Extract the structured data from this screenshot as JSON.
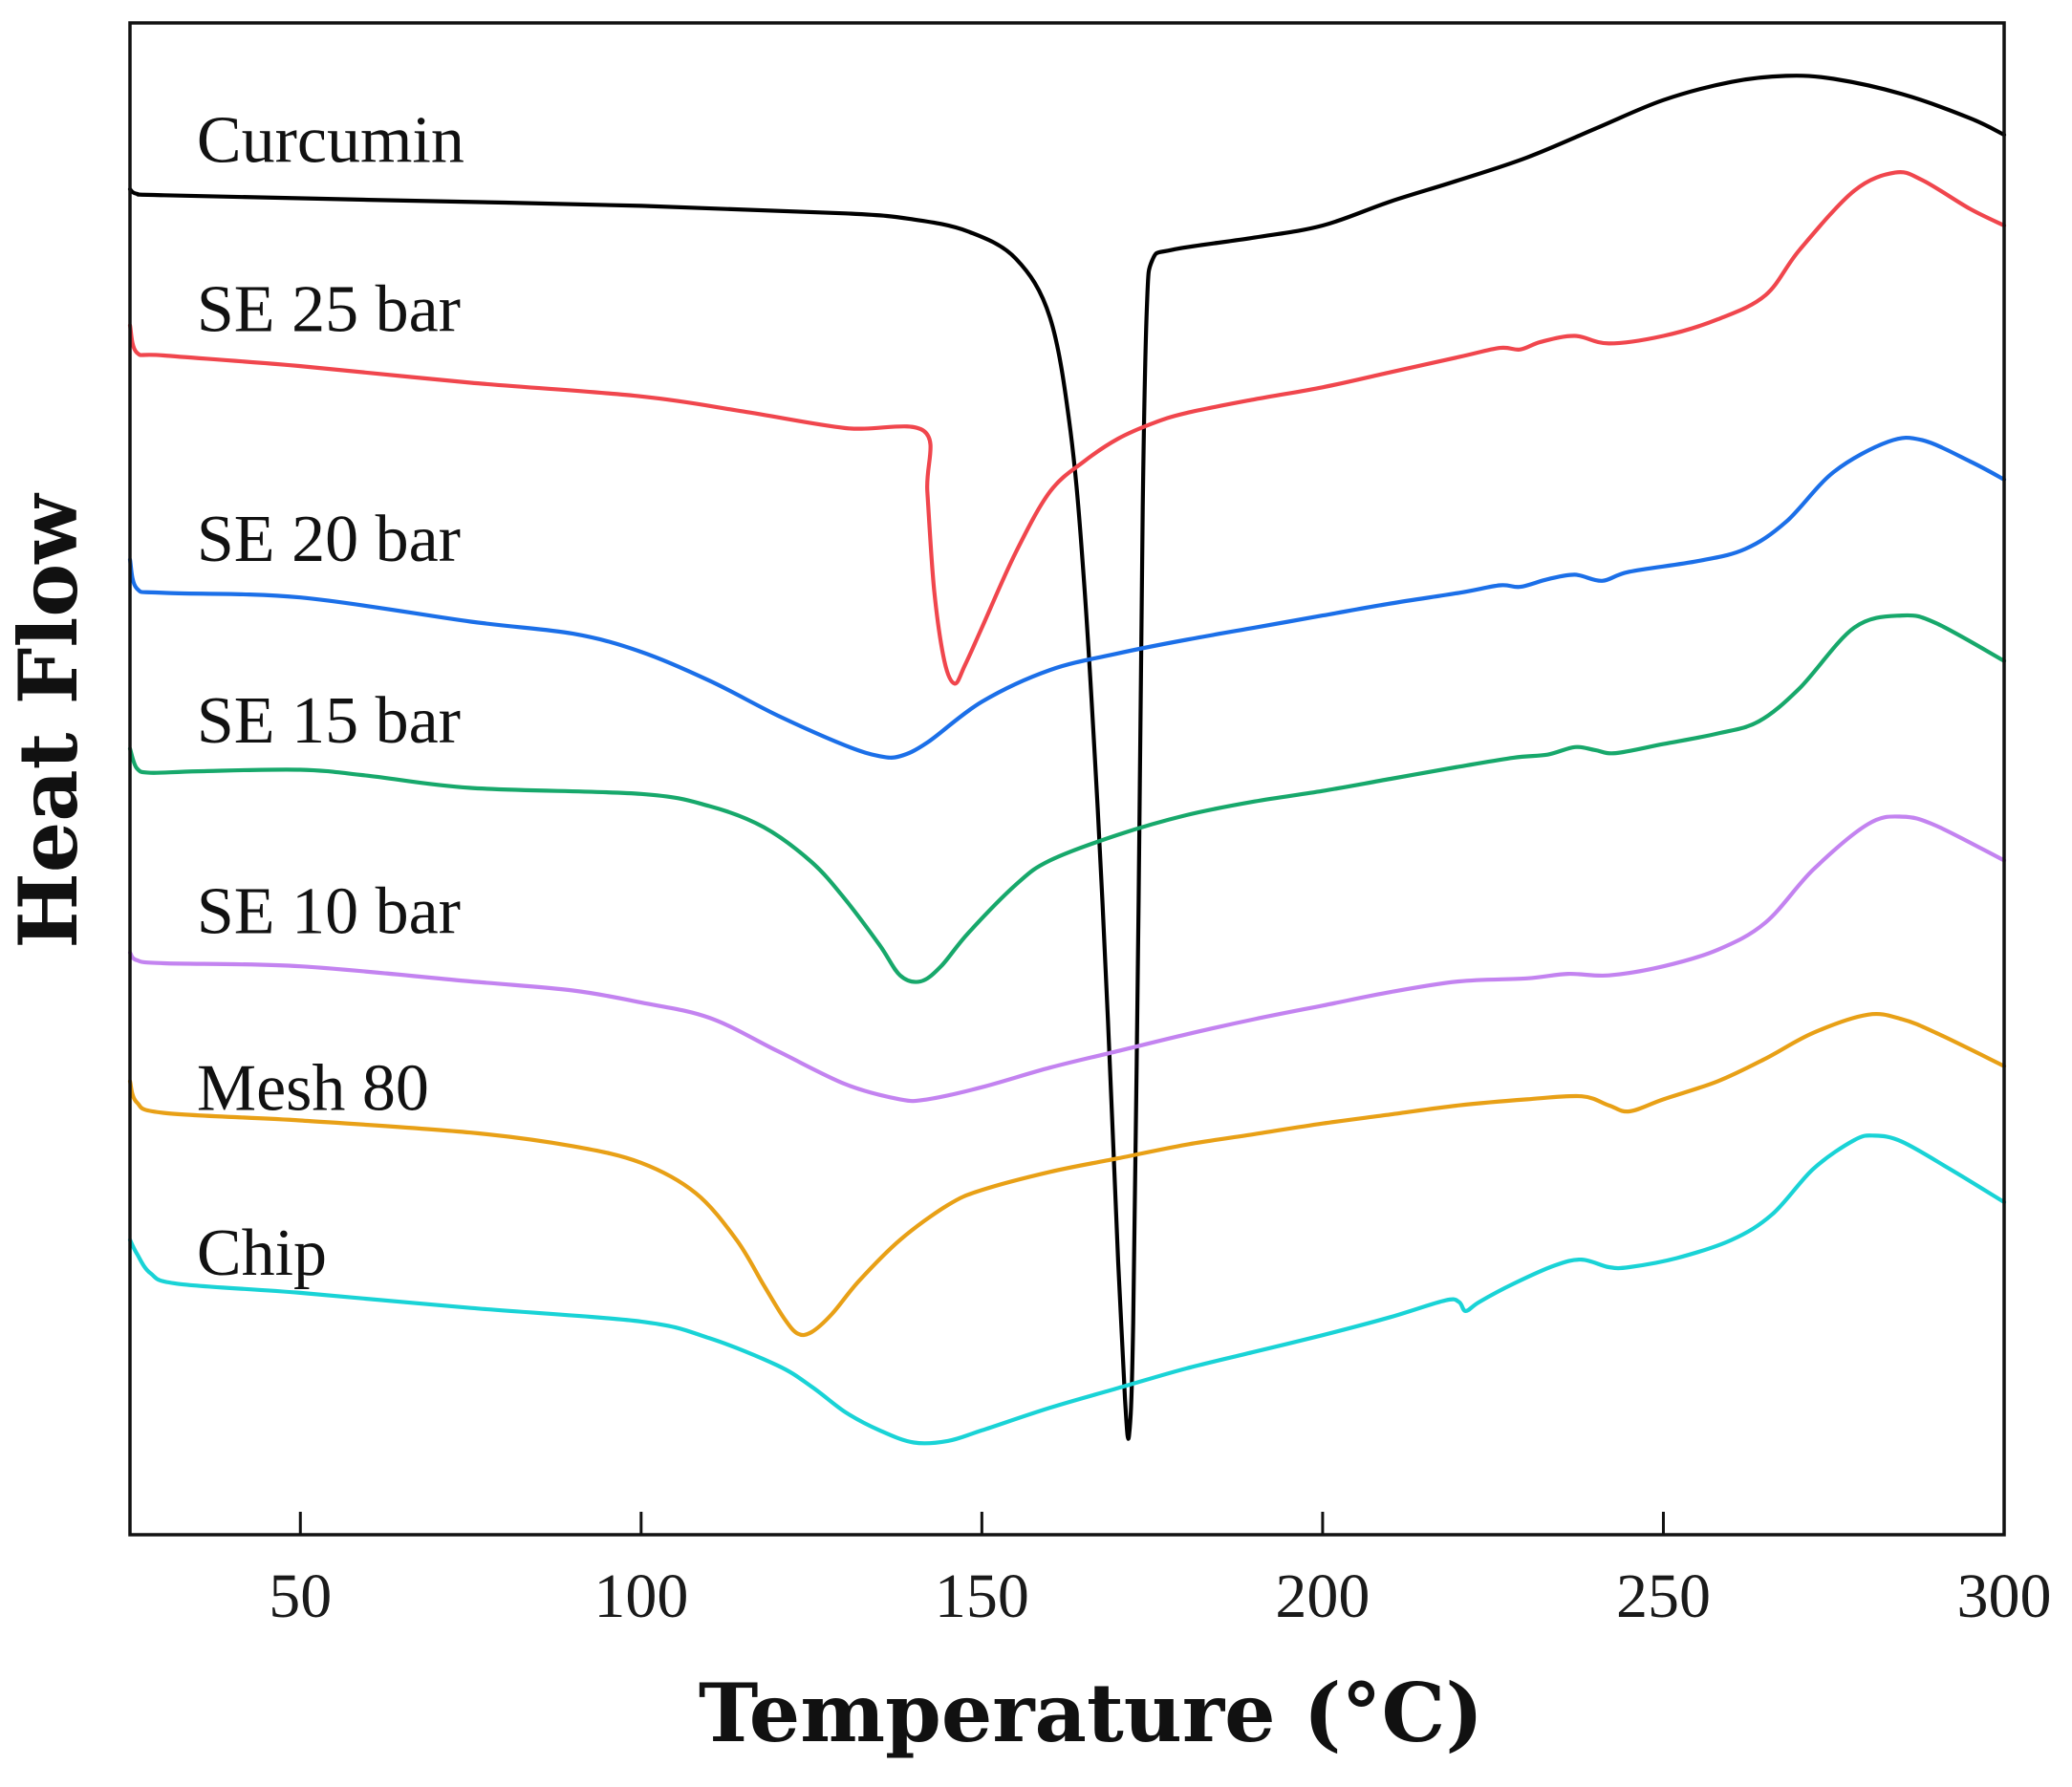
{
  "chart_data": {
    "type": "line",
    "title": "",
    "xlabel": "Temperature (°C)",
    "ylabel": "Heat Flow",
    "xlim": [
      25,
      300
    ],
    "ylim": [
      0,
      100
    ],
    "x_ticks": [
      50,
      100,
      150,
      200,
      250,
      300
    ],
    "y_ticks": [],
    "grid": false,
    "legend": "inline labels",
    "series": [
      {
        "name": "Curcumin",
        "color": "#000000",
        "points": [
          [
            25,
            89
          ],
          [
            26,
            88.7
          ],
          [
            30,
            88.6
          ],
          [
            60,
            88.3
          ],
          [
            100,
            87.9
          ],
          [
            130,
            87.4
          ],
          [
            140,
            87.0
          ],
          [
            148,
            86.2
          ],
          [
            155,
            84.4
          ],
          [
            160,
            80.5
          ],
          [
            163,
            73.0
          ],
          [
            165,
            63.0
          ],
          [
            167,
            48.0
          ],
          [
            168.5,
            34.0
          ],
          [
            170,
            18.0
          ],
          [
            171,
            9.0
          ],
          [
            171.6,
            6.6
          ],
          [
            172.2,
            14.0
          ],
          [
            173,
            42.0
          ],
          [
            173.6,
            68.0
          ],
          [
            174.2,
            81.0
          ],
          [
            175,
            84.3
          ],
          [
            178,
            85.0
          ],
          [
            190,
            85.8
          ],
          [
            200,
            86.6
          ],
          [
            210,
            88.2
          ],
          [
            220,
            89.6
          ],
          [
            230,
            91.1
          ],
          [
            240,
            93.0
          ],
          [
            250,
            94.9
          ],
          [
            260,
            96.1
          ],
          [
            268,
            96.5
          ],
          [
            275,
            96.3
          ],
          [
            285,
            95.3
          ],
          [
            295,
            93.7
          ],
          [
            300,
            92.6
          ]
        ]
      },
      {
        "name": "SE 25 bar",
        "color": "#f0464d",
        "points": [
          [
            25,
            80
          ],
          [
            26,
            78.2
          ],
          [
            30,
            78.0
          ],
          [
            50,
            77.3
          ],
          [
            75,
            76.2
          ],
          [
            100,
            75.3
          ],
          [
            115,
            74.3
          ],
          [
            130,
            73.2
          ],
          [
            141.5,
            73.0
          ],
          [
            142,
            69.0
          ],
          [
            143,
            62.5
          ],
          [
            144.5,
            57.8
          ],
          [
            146,
            56.3
          ],
          [
            147.5,
            57.5
          ],
          [
            150,
            60.0
          ],
          [
            155,
            65.0
          ],
          [
            160,
            69.0
          ],
          [
            165,
            71.0
          ],
          [
            170,
            72.5
          ],
          [
            175,
            73.5
          ],
          [
            180,
            74.2
          ],
          [
            190,
            75.1
          ],
          [
            200,
            75.9
          ],
          [
            210,
            76.9
          ],
          [
            220,
            77.9
          ],
          [
            226,
            78.5
          ],
          [
            229,
            78.4
          ],
          [
            232,
            78.9
          ],
          [
            237,
            79.3
          ],
          [
            242,
            78.8
          ],
          [
            250,
            79.3
          ],
          [
            258,
            80.4
          ],
          [
            265,
            82.0
          ],
          [
            270,
            85.0
          ],
          [
            278,
            88.9
          ],
          [
            284,
            90.1
          ],
          [
            288,
            89.6
          ],
          [
            295,
            87.7
          ],
          [
            300,
            86.6
          ]
        ]
      },
      {
        "name": "SE 20 bar",
        "color": "#1b6fe8",
        "points": [
          [
            25,
            64.5
          ],
          [
            26,
            62.6
          ],
          [
            30,
            62.3
          ],
          [
            50,
            62.0
          ],
          [
            75,
            60.4
          ],
          [
            90,
            59.6
          ],
          [
            100,
            58.4
          ],
          [
            110,
            56.5
          ],
          [
            120,
            54.2
          ],
          [
            130,
            52.2
          ],
          [
            135,
            51.5
          ],
          [
            138,
            51.5
          ],
          [
            142,
            52.4
          ],
          [
            150,
            55.1
          ],
          [
            160,
            57.2
          ],
          [
            170,
            58.3
          ],
          [
            180,
            59.2
          ],
          [
            190,
            60.0
          ],
          [
            200,
            60.8
          ],
          [
            210,
            61.6
          ],
          [
            220,
            62.3
          ],
          [
            226,
            62.8
          ],
          [
            229,
            62.7
          ],
          [
            233,
            63.2
          ],
          [
            237,
            63.5
          ],
          [
            241,
            63.1
          ],
          [
            245,
            63.7
          ],
          [
            255,
            64.4
          ],
          [
            262,
            65.2
          ],
          [
            268,
            67.0
          ],
          [
            275,
            70.3
          ],
          [
            283,
            72.3
          ],
          [
            288,
            72.4
          ],
          [
            295,
            71.0
          ],
          [
            300,
            69.8
          ]
        ]
      },
      {
        "name": "SE 15 bar",
        "color": "#17a86b",
        "points": [
          [
            25,
            52
          ],
          [
            26,
            50.7
          ],
          [
            28,
            50.4
          ],
          [
            35,
            50.5
          ],
          [
            50,
            50.6
          ],
          [
            60,
            50.2
          ],
          [
            75,
            49.4
          ],
          [
            100,
            49.0
          ],
          [
            110,
            48.2
          ],
          [
            118,
            46.8
          ],
          [
            125,
            44.5
          ],
          [
            130,
            42.0
          ],
          [
            135,
            39.0
          ],
          [
            138,
            37.0
          ],
          [
            141,
            36.6
          ],
          [
            144,
            37.6
          ],
          [
            148,
            39.8
          ],
          [
            155,
            43.0
          ],
          [
            160,
            44.6
          ],
          [
            170,
            46.3
          ],
          [
            180,
            47.6
          ],
          [
            190,
            48.5
          ],
          [
            200,
            49.2
          ],
          [
            210,
            50.0
          ],
          [
            220,
            50.8
          ],
          [
            228,
            51.4
          ],
          [
            233,
            51.6
          ],
          [
            237,
            52.1
          ],
          [
            240,
            51.9
          ],
          [
            243,
            51.7
          ],
          [
            250,
            52.3
          ],
          [
            258,
            53.0
          ],
          [
            264,
            53.8
          ],
          [
            270,
            56.0
          ],
          [
            278,
            60.0
          ],
          [
            285,
            60.8
          ],
          [
            290,
            60.3
          ],
          [
            300,
            57.8
          ]
        ]
      },
      {
        "name": "SE 10 bar",
        "color": "#c383f0",
        "points": [
          [
            25,
            38.5
          ],
          [
            26,
            38.0
          ],
          [
            30,
            37.8
          ],
          [
            50,
            37.6
          ],
          [
            75,
            36.6
          ],
          [
            90,
            36.0
          ],
          [
            100,
            35.2
          ],
          [
            110,
            34.2
          ],
          [
            120,
            32.0
          ],
          [
            130,
            29.8
          ],
          [
            138,
            28.8
          ],
          [
            142,
            28.8
          ],
          [
            150,
            29.6
          ],
          [
            160,
            30.9
          ],
          [
            170,
            32.0
          ],
          [
            180,
            33.1
          ],
          [
            190,
            34.1
          ],
          [
            200,
            35.0
          ],
          [
            210,
            35.9
          ],
          [
            220,
            36.6
          ],
          [
            230,
            36.8
          ],
          [
            236,
            37.1
          ],
          [
            242,
            37.0
          ],
          [
            250,
            37.6
          ],
          [
            258,
            38.7
          ],
          [
            265,
            40.5
          ],
          [
            272,
            44.0
          ],
          [
            280,
            47.0
          ],
          [
            285,
            47.5
          ],
          [
            290,
            46.9
          ],
          [
            300,
            44.6
          ]
        ]
      },
      {
        "name": "Mesh 80",
        "color": "#e8a016",
        "points": [
          [
            25,
            30
          ],
          [
            26,
            28.6
          ],
          [
            30,
            27.9
          ],
          [
            50,
            27.4
          ],
          [
            75,
            26.6
          ],
          [
            90,
            25.7
          ],
          [
            100,
            24.6
          ],
          [
            108,
            22.6
          ],
          [
            114,
            19.5
          ],
          [
            118,
            16.5
          ],
          [
            121,
            14.3
          ],
          [
            123,
            13.3
          ],
          [
            125,
            13.4
          ],
          [
            128,
            14.6
          ],
          [
            132,
            16.8
          ],
          [
            138,
            19.5
          ],
          [
            145,
            21.8
          ],
          [
            150,
            22.8
          ],
          [
            160,
            24.0
          ],
          [
            170,
            24.9
          ],
          [
            180,
            25.8
          ],
          [
            190,
            26.5
          ],
          [
            200,
            27.2
          ],
          [
            210,
            27.8
          ],
          [
            220,
            28.4
          ],
          [
            230,
            28.8
          ],
          [
            238,
            29.0
          ],
          [
            242,
            28.4
          ],
          [
            245,
            28.0
          ],
          [
            250,
            28.8
          ],
          [
            258,
            30.0
          ],
          [
            265,
            31.5
          ],
          [
            272,
            33.2
          ],
          [
            280,
            34.4
          ],
          [
            285,
            34.1
          ],
          [
            290,
            33.2
          ],
          [
            300,
            31.0
          ]
        ]
      },
      {
        "name": "Chip",
        "color": "#19d3d6",
        "points": [
          [
            25,
            19.5
          ],
          [
            26,
            18.6
          ],
          [
            28,
            17.3
          ],
          [
            32,
            16.6
          ],
          [
            50,
            16.0
          ],
          [
            75,
            15.0
          ],
          [
            100,
            14.1
          ],
          [
            110,
            13.0
          ],
          [
            120,
            11.2
          ],
          [
            125,
            9.8
          ],
          [
            130,
            8.1
          ],
          [
            135,
            6.9
          ],
          [
            140,
            6.1
          ],
          [
            145,
            6.2
          ],
          [
            150,
            6.9
          ],
          [
            160,
            8.4
          ],
          [
            170,
            9.7
          ],
          [
            180,
            11.0
          ],
          [
            190,
            12.1
          ],
          [
            200,
            13.2
          ],
          [
            210,
            14.4
          ],
          [
            218,
            15.5
          ],
          [
            220,
            15.4
          ],
          [
            221,
            14.8
          ],
          [
            223,
            15.4
          ],
          [
            228,
            16.6
          ],
          [
            234,
            17.8
          ],
          [
            238,
            18.2
          ],
          [
            242,
            17.7
          ],
          [
            245,
            17.7
          ],
          [
            252,
            18.3
          ],
          [
            260,
            19.5
          ],
          [
            266,
            21.2
          ],
          [
            272,
            24.2
          ],
          [
            278,
            26.1
          ],
          [
            281,
            26.4
          ],
          [
            285,
            26.0
          ],
          [
            292,
            24.2
          ],
          [
            300,
            22.0
          ]
        ]
      }
    ]
  }
}
